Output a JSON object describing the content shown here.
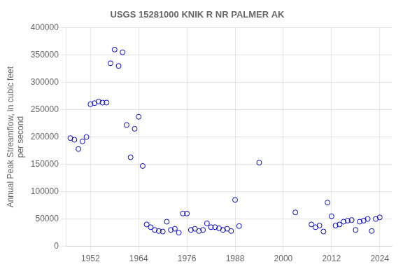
{
  "chart_data": {
    "type": "scatter",
    "title": "USGS 15281000 KNIK R NR PALMER AK",
    "ylabel": "Annual Peak Streamflow, in cubic feet\nper second",
    "x": [
      1947,
      1948,
      1949,
      1950,
      1951,
      1952,
      1953,
      1954,
      1955,
      1956,
      1957,
      1958,
      1959,
      1960,
      1961,
      1962,
      1963,
      1964,
      1965,
      1966,
      1967,
      1968,
      1969,
      1970,
      1971,
      1972,
      1973,
      1974,
      1975,
      1976,
      1977,
      1978,
      1979,
      1980,
      1981,
      1982,
      1983,
      1984,
      1985,
      1986,
      1987,
      1988,
      1989,
      1994,
      2003,
      2007,
      2008,
      2009,
      2010,
      2011,
      2012,
      2013,
      2014,
      2015,
      2016,
      2017,
      2018,
      2019,
      2020,
      2021,
      2022,
      2023,
      2024
    ],
    "values": [
      198000,
      195000,
      178000,
      192000,
      200000,
      260000,
      262000,
      265000,
      263000,
      263000,
      335000,
      360000,
      330000,
      355000,
      222000,
      163000,
      215000,
      237000,
      147000,
      40000,
      35000,
      30000,
      28000,
      27000,
      45000,
      30000,
      32000,
      25000,
      60000,
      60000,
      30000,
      32000,
      28000,
      30000,
      42000,
      35000,
      35000,
      33000,
      30000,
      32000,
      28000,
      85000,
      37000,
      153000,
      62000,
      40000,
      35000,
      38000,
      27000,
      80000,
      55000,
      38000,
      40000,
      45000,
      47000,
      48000,
      30000,
      45000,
      47000,
      50000,
      28000,
      50000,
      53000
    ],
    "color": "#0000cc",
    "marker": "circle",
    "xlim": [
      1946,
      2027
    ],
    "xticks": [
      1952,
      1964,
      1976,
      1988,
      2000,
      2012,
      2024
    ],
    "ylim": [
      0,
      400000
    ],
    "yticks": [
      0,
      50000,
      100000,
      150000,
      200000,
      250000,
      300000,
      350000,
      400000
    ],
    "grid": true
  }
}
